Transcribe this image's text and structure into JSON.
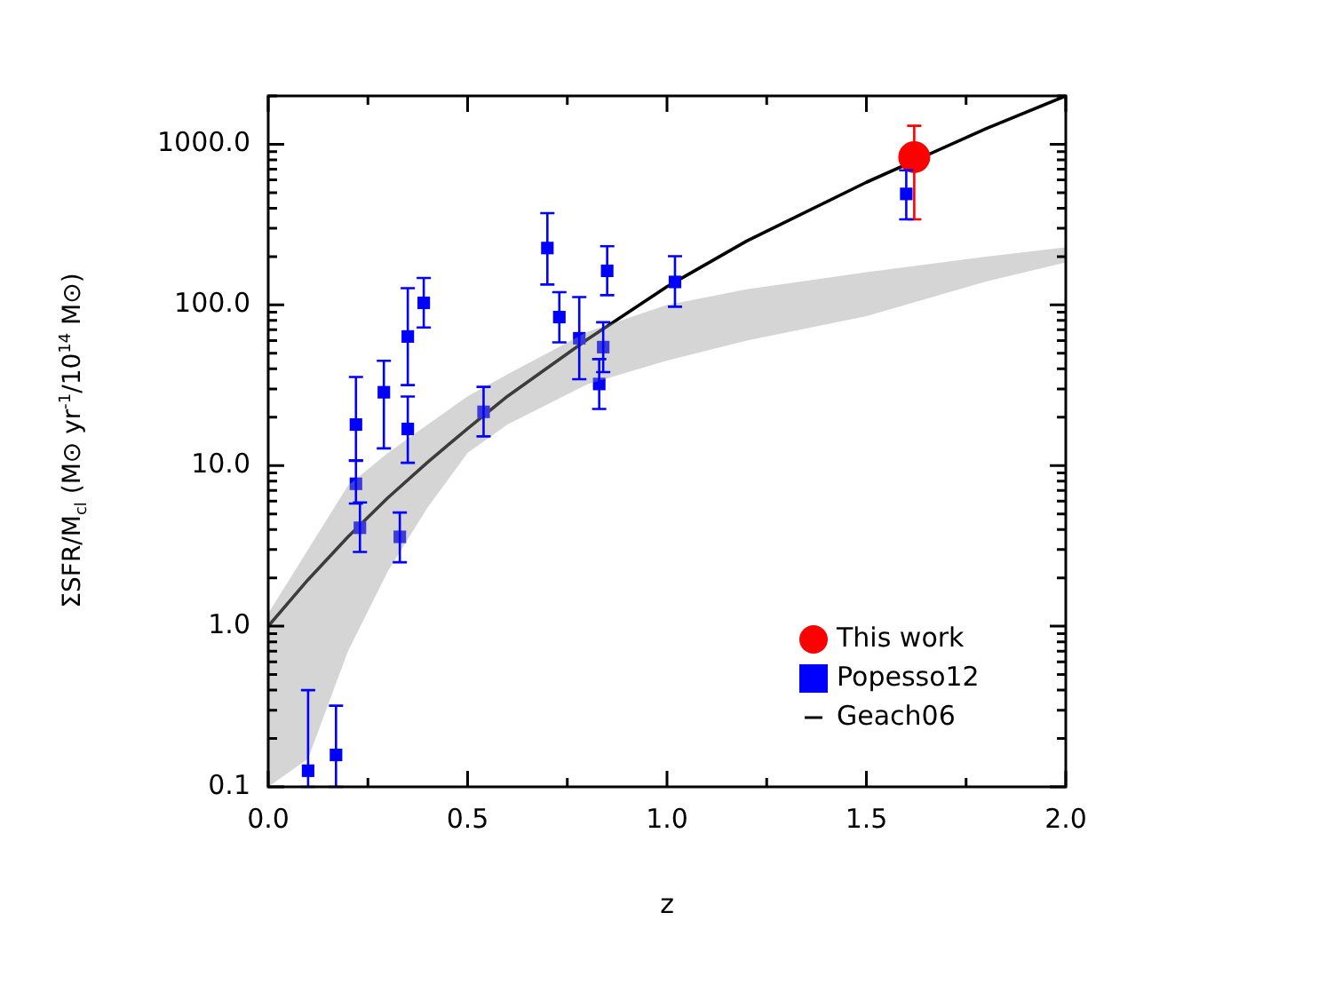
{
  "chart_data": {
    "type": "scatter",
    "xlabel": "z",
    "ylabel": "ΣSFR/M$_{cl}$ (M⊙ yr$^{-1}$/10$^{14}$ M⊙)",
    "log": "y",
    "xlim": [
      0,
      2
    ],
    "ylim": [
      0.1,
      2000
    ],
    "xticks": [
      {
        "value": 0,
        "label": "0.0"
      },
      {
        "value": 0.25,
        "label": null
      },
      {
        "value": 0.5,
        "label": "0.5"
      },
      {
        "value": 0.75,
        "label": null
      },
      {
        "value": 1,
        "label": "1.0"
      },
      {
        "value": 1.25,
        "label": null
      },
      {
        "value": 1.5,
        "label": "1.5"
      },
      {
        "value": 1.75,
        "label": null
      },
      {
        "value": 2,
        "label": "2.0"
      }
    ],
    "yticks": [
      {
        "value": 0.1,
        "label": "0.1"
      },
      {
        "value": 0.2,
        "label": null
      },
      {
        "value": 0.3,
        "label": null
      },
      {
        "value": 0.4,
        "label": null
      },
      {
        "value": 0.5,
        "label": null
      },
      {
        "value": 0.6,
        "label": null
      },
      {
        "value": 0.7,
        "label": null
      },
      {
        "value": 0.8,
        "label": null
      },
      {
        "value": 0.9,
        "label": null
      },
      {
        "value": 1,
        "label": "1.0"
      },
      {
        "value": 2,
        "label": null
      },
      {
        "value": 3,
        "label": null
      },
      {
        "value": 4,
        "label": null
      },
      {
        "value": 5,
        "label": null
      },
      {
        "value": 6,
        "label": null
      },
      {
        "value": 7,
        "label": null
      },
      {
        "value": 8,
        "label": null
      },
      {
        "value": 9,
        "label": null
      },
      {
        "value": 10,
        "label": "10.0"
      },
      {
        "value": 20,
        "label": null
      },
      {
        "value": 30,
        "label": null
      },
      {
        "value": 40,
        "label": null
      },
      {
        "value": 50,
        "label": null
      },
      {
        "value": 60,
        "label": null
      },
      {
        "value": 70,
        "label": null
      },
      {
        "value": 80,
        "label": null
      },
      {
        "value": 90,
        "label": null
      },
      {
        "value": 100,
        "label": "100.0"
      },
      {
        "value": 200,
        "label": null
      },
      {
        "value": 300,
        "label": null
      },
      {
        "value": 400,
        "label": null
      },
      {
        "value": 500,
        "label": null
      },
      {
        "value": 600,
        "label": null
      },
      {
        "value": 700,
        "label": null
      },
      {
        "value": 800,
        "label": null
      },
      {
        "value": 900,
        "label": null
      },
      {
        "value": 1000,
        "label": "1000.0"
      },
      {
        "value": 2000,
        "label": null
      }
    ],
    "grid": false,
    "legend": "bottom right",
    "series": [
      {
        "name": "This work",
        "marker": "circle",
        "color": "#ff0000",
        "x": [
          1.62
        ],
        "values": [
          832
        ],
        "errors": [
          [
            341,
            1303
          ]
        ]
      },
      {
        "name": "Popesso12",
        "marker": "square",
        "color": "#0000ff",
        "x": [
          0.1,
          0.17,
          0.22,
          0.22,
          0.23,
          0.29,
          0.33,
          0.35,
          0.35,
          0.39,
          0.54,
          0.7,
          0.73,
          0.78,
          0.83,
          0.84,
          0.85,
          1.02,
          1.6
        ],
        "values": [
          0.126,
          0.158,
          18,
          7.7,
          4.1,
          28.6,
          3.6,
          16.9,
          63.6,
          103,
          21.6,
          226,
          84,
          62,
          32.2,
          54.6,
          163,
          139,
          491
        ],
        "errors": [
          [
            0.1,
            0.4
          ],
          [
            0.1,
            0.32
          ],
          [
            10.8,
            35.6
          ],
          [
            5.8,
            10.7
          ],
          [
            2.9,
            5.9
          ],
          [
            12.8,
            44.9
          ],
          [
            2.5,
            5.1
          ],
          [
            10.4,
            26.9
          ],
          [
            31.7,
            127
          ],
          [
            72.3,
            147
          ],
          [
            15.2,
            30.9
          ],
          [
            134,
            373
          ],
          [
            58.5,
            120
          ],
          [
            34.5,
            112
          ],
          [
            22.5,
            46
          ],
          [
            38.2,
            78
          ],
          [
            115,
            232
          ],
          [
            97.5,
            201
          ],
          [
            341,
            689
          ]
        ]
      },
      {
        "name": "Geach06",
        "type": "line",
        "marker": "none",
        "color": "#000000",
        "x": [
          0,
          0.1,
          0.2,
          0.3,
          0.4,
          0.5,
          0.6,
          0.8,
          1,
          1.2,
          1.5,
          1.8,
          2
        ],
        "values": [
          1,
          1.95,
          3.6,
          6.3,
          10.5,
          17,
          27,
          61,
          130,
          250,
          580,
          1250,
          2000
        ],
        "upper": [
          1.2,
          3,
          7.5,
          12,
          18,
          27,
          37,
          68,
          100,
          125,
          160,
          200,
          228
        ],
        "lower": [
          0.1,
          0.15,
          0.7,
          2.2,
          5.5,
          12,
          18,
          32,
          45,
          60,
          85,
          140,
          184
        ]
      }
    ]
  }
}
